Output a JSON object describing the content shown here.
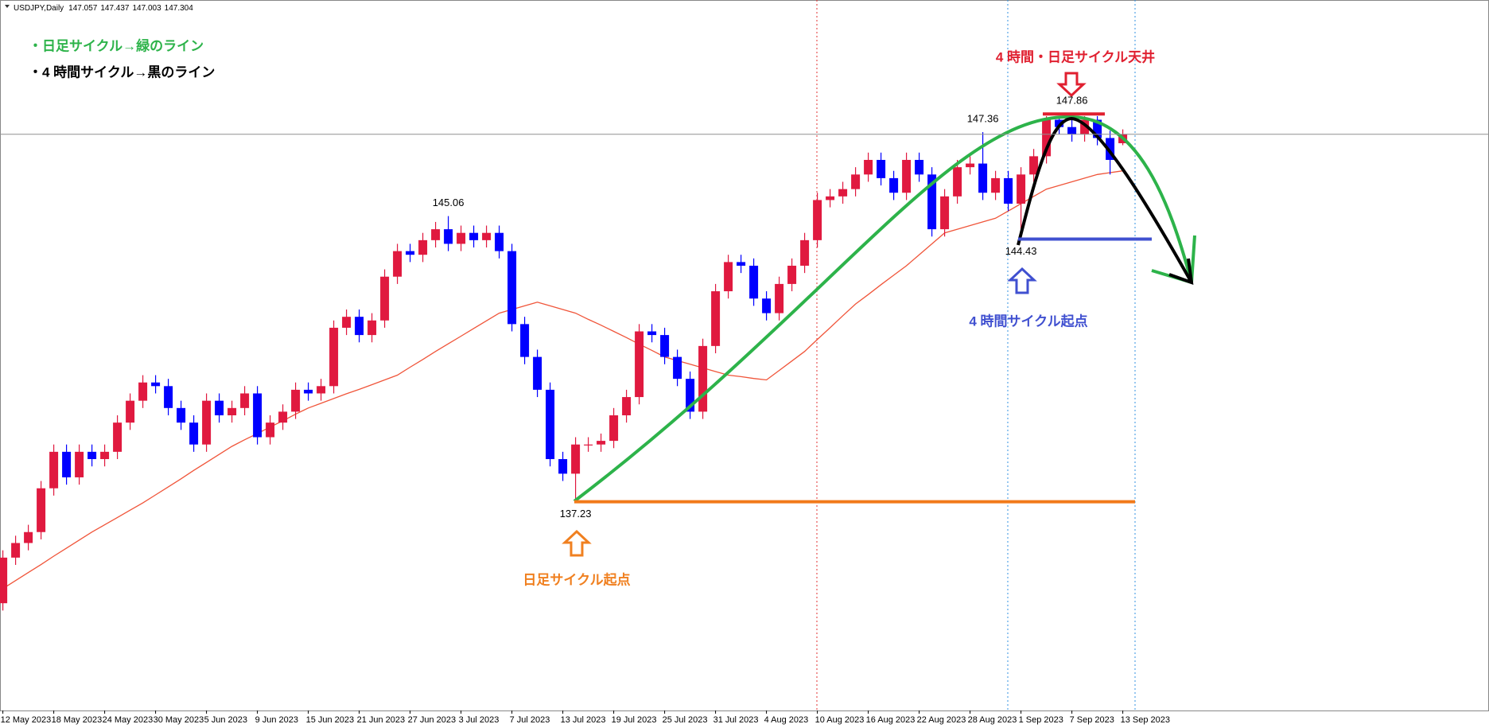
{
  "chart_data": {
    "type": "candlestick",
    "symbol": "USDJPY,Daily",
    "categories": [
      "12 May 2023",
      null,
      null,
      null,
      "18 May 2023",
      null,
      null,
      null,
      "24 May 2023",
      null,
      null,
      null,
      "30 May 2023",
      null,
      null,
      null,
      "5 Jun 2023",
      null,
      null,
      null,
      "9 Jun 2023",
      null,
      null,
      null,
      "15 Jun 2023",
      null,
      null,
      null,
      "21 Jun 2023",
      null,
      null,
      null,
      "27 Jun 2023",
      null,
      null,
      null,
      "3 Jul 2023",
      null,
      null,
      null,
      "7 Jul 2023",
      null,
      null,
      null,
      "13 Jul 2023",
      null,
      null,
      null,
      "19 Jul 2023",
      null,
      null,
      null,
      "25 Jul 2023",
      null,
      null,
      null,
      "31 Jul 2023",
      null,
      null,
      null,
      "4 Aug 2023",
      null,
      null,
      null,
      "10 Aug 2023",
      null,
      null,
      null,
      "16 Aug 2023",
      null,
      null,
      null,
      "22 Aug 2023",
      null,
      null,
      null,
      "28 Aug 2023",
      null,
      null,
      null,
      "1 Sep 2023",
      null,
      null,
      null,
      "7 Sep 2023",
      null,
      null,
      null,
      "13 Sep 2023"
    ],
    "open": [
      134.45,
      135.7,
      136.1,
      136.4,
      137.6,
      138.6,
      137.9,
      138.6,
      138.4,
      138.6,
      139.4,
      140.0,
      140.5,
      140.4,
      139.8,
      139.4,
      138.8,
      140.0,
      139.6,
      139.8,
      140.2,
      139.0,
      139.4,
      139.7,
      140.3,
      140.2,
      140.4,
      142.0,
      142.3,
      141.8,
      142.2,
      143.4,
      144.1,
      144.0,
      144.4,
      144.7,
      144.3,
      144.6,
      144.4,
      144.6,
      144.1,
      142.1,
      141.2,
      140.3,
      138.4,
      138.0,
      138.8,
      138.8,
      138.9,
      139.6,
      140.1,
      141.9,
      141.8,
      141.2,
      140.6,
      139.7,
      141.5,
      143.0,
      143.8,
      143.7,
      142.8,
      142.4,
      143.2,
      143.7,
      144.4,
      145.5,
      145.6,
      145.8,
      146.2,
      146.6,
      146.1,
      145.7,
      146.6,
      146.2,
      144.7,
      145.6,
      146.4,
      146.5,
      145.7,
      146.1,
      145.4,
      146.2,
      146.7,
      147.7,
      147.5,
      147.3,
      147.7,
      147.2,
      147.057
    ],
    "high": [
      135.9,
      136.3,
      136.6,
      137.8,
      138.8,
      138.8,
      138.8,
      138.8,
      138.8,
      139.6,
      140.2,
      140.7,
      140.7,
      140.6,
      140.0,
      139.6,
      140.2,
      140.2,
      140.0,
      140.4,
      140.4,
      139.6,
      139.9,
      140.5,
      140.5,
      140.6,
      142.2,
      142.5,
      142.5,
      142.4,
      143.6,
      144.3,
      144.3,
      144.6,
      144.9,
      145.06,
      144.8,
      144.8,
      144.8,
      144.8,
      144.3,
      142.3,
      141.4,
      140.5,
      138.6,
      139.0,
      139.0,
      139.1,
      139.8,
      140.3,
      142.1,
      142.1,
      142.0,
      141.4,
      140.8,
      141.7,
      143.2,
      144.0,
      144.0,
      143.9,
      143.0,
      143.4,
      143.9,
      144.6,
      145.7,
      145.8,
      146.0,
      146.4,
      146.8,
      146.8,
      146.3,
      146.8,
      146.8,
      146.4,
      145.8,
      146.6,
      146.7,
      147.36,
      146.3,
      146.3,
      146.4,
      146.9,
      147.8,
      147.8,
      147.86,
      147.8,
      147.8,
      147.4,
      147.437
    ],
    "low": [
      134.25,
      135.5,
      135.9,
      136.2,
      137.4,
      137.7,
      137.7,
      138.2,
      138.2,
      138.4,
      139.2,
      139.8,
      140.2,
      139.6,
      139.2,
      138.6,
      138.6,
      139.4,
      139.4,
      139.6,
      138.8,
      138.8,
      139.2,
      139.5,
      140.0,
      140.0,
      140.2,
      141.8,
      141.6,
      141.6,
      142.0,
      143.2,
      143.8,
      143.8,
      144.2,
      144.1,
      144.1,
      144.2,
      144.2,
      143.9,
      141.9,
      141.0,
      140.1,
      138.2,
      137.8,
      137.23,
      138.6,
      138.6,
      138.7,
      139.4,
      139.9,
      141.6,
      141.0,
      140.4,
      139.5,
      139.5,
      141.3,
      142.8,
      143.5,
      142.6,
      142.2,
      142.2,
      143.0,
      143.5,
      144.2,
      145.3,
      145.4,
      145.6,
      146.0,
      145.9,
      145.5,
      145.5,
      146.0,
      144.5,
      144.5,
      145.4,
      146.2,
      145.5,
      145.5,
      145.2,
      144.43,
      146.0,
      146.5,
      147.3,
      147.1,
      147.1,
      147.0,
      146.2,
      147.003
    ],
    "close": [
      135.7,
      136.1,
      136.4,
      137.6,
      138.6,
      137.9,
      138.6,
      138.4,
      138.6,
      139.4,
      140.0,
      140.5,
      140.4,
      139.8,
      139.4,
      138.8,
      140.0,
      139.6,
      139.8,
      140.2,
      139.0,
      139.4,
      139.7,
      140.3,
      140.2,
      140.4,
      142.0,
      142.3,
      141.8,
      142.2,
      143.4,
      144.1,
      144.0,
      144.4,
      144.7,
      144.3,
      144.6,
      144.4,
      144.6,
      144.1,
      142.1,
      141.2,
      140.3,
      138.4,
      138.0,
      138.8,
      138.8,
      138.9,
      139.6,
      140.1,
      141.9,
      141.8,
      141.2,
      140.6,
      139.7,
      141.5,
      143.0,
      143.8,
      143.7,
      142.8,
      142.4,
      143.2,
      143.7,
      144.4,
      145.5,
      145.6,
      145.8,
      146.2,
      146.6,
      146.1,
      145.7,
      146.6,
      146.2,
      144.7,
      145.6,
      146.4,
      146.5,
      145.7,
      146.1,
      145.4,
      146.2,
      146.7,
      147.7,
      147.5,
      147.3,
      147.7,
      147.2,
      146.6,
      147.304
    ],
    "up_color": "#e0193f",
    "down_color": "#0000ff",
    "ma": {
      "color": "#f0553a",
      "values": [
        134.85,
        135.07,
        135.29,
        135.51,
        135.74,
        135.96,
        136.18,
        136.4,
        136.6,
        136.8,
        137.0,
        137.2,
        137.42,
        137.64,
        137.86,
        138.09,
        138.31,
        138.53,
        138.75,
        138.93,
        139.1,
        139.28,
        139.45,
        139.63,
        139.8,
        139.93,
        140.06,
        140.19,
        140.31,
        140.44,
        140.57,
        140.7,
        140.92,
        141.13,
        141.35,
        141.56,
        141.77,
        141.98,
        142.19,
        142.4,
        142.5,
        142.6,
        142.7,
        142.6,
        142.5,
        142.4,
        142.23,
        142.07,
        141.9,
        141.73,
        141.55,
        141.38,
        141.2,
        141.1,
        141.0,
        140.9,
        140.8,
        140.7,
        140.66,
        140.61,
        140.57,
        140.83,
        141.09,
        141.35,
        141.68,
        142.0,
        142.33,
        142.65,
        142.91,
        143.18,
        143.44,
        143.7,
        144.0,
        144.3,
        144.6,
        144.7,
        144.8,
        144.9,
        145.0,
        145.2,
        145.4,
        145.6,
        145.8,
        145.9,
        146.0,
        146.1,
        146.2,
        146.25,
        146.3
      ]
    },
    "ylim": [
      131.51,
      150.93
    ],
    "grid": false,
    "annotations": [
      {
        "text": "・日足サイクル→緑のライン"
      },
      {
        "text": "・4 時間サイクル→黒のライン"
      },
      {
        "text": "4 時間・日足サイクル天井"
      },
      {
        "text": "4 時間サイクル起点"
      },
      {
        "text": "日足サイクル起点"
      }
    ]
  }
}
